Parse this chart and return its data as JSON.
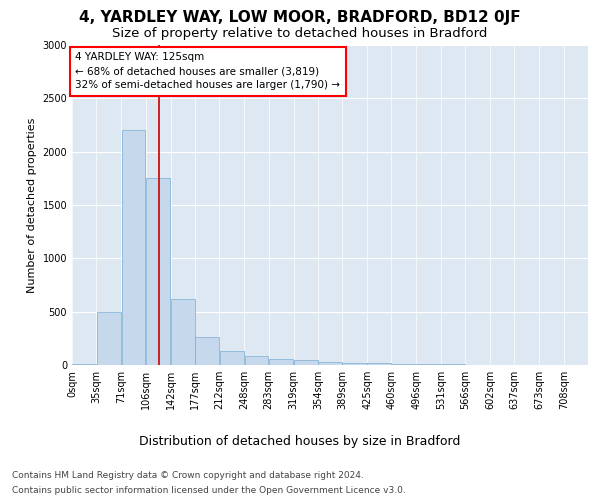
{
  "title": "4, YARDLEY WAY, LOW MOOR, BRADFORD, BD12 0JF",
  "subtitle": "Size of property relative to detached houses in Bradford",
  "xlabel": "Distribution of detached houses by size in Bradford",
  "ylabel": "Number of detached properties",
  "footnote1": "Contains HM Land Registry data © Crown copyright and database right 2024.",
  "footnote2": "Contains public sector information licensed under the Open Government Licence v3.0.",
  "bar_color": "#c5d8ec",
  "bar_edge_color": "#7aadd4",
  "bg_color": "#dde8f3",
  "annotation_text": "4 YARDLEY WAY: 125sqm\n← 68% of detached houses are smaller (3,819)\n32% of semi-detached houses are larger (1,790) →",
  "vline_x": 125,
  "vline_color": "#cc0000",
  "categories": [
    "0sqm",
    "35sqm",
    "71sqm",
    "106sqm",
    "142sqm",
    "177sqm",
    "212sqm",
    "248sqm",
    "283sqm",
    "319sqm",
    "354sqm",
    "389sqm",
    "425sqm",
    "460sqm",
    "496sqm",
    "531sqm",
    "566sqm",
    "602sqm",
    "637sqm",
    "673sqm",
    "708sqm"
  ],
  "bin_edges": [
    0,
    35,
    71,
    106,
    142,
    177,
    212,
    248,
    283,
    319,
    354,
    389,
    425,
    460,
    496,
    531,
    566,
    602,
    637,
    673,
    708,
    743
  ],
  "values": [
    10,
    500,
    2200,
    1750,
    620,
    260,
    135,
    80,
    55,
    45,
    30,
    20,
    15,
    10,
    5,
    5,
    3,
    2,
    2,
    1,
    1
  ],
  "ylim": [
    0,
    3000
  ],
  "yticks": [
    0,
    500,
    1000,
    1500,
    2000,
    2500,
    3000
  ],
  "title_fontsize": 11,
  "subtitle_fontsize": 9.5,
  "xlabel_fontsize": 9,
  "ylabel_fontsize": 8,
  "tick_fontsize": 7,
  "annotation_fontsize": 7.5,
  "footnote_fontsize": 6.5
}
